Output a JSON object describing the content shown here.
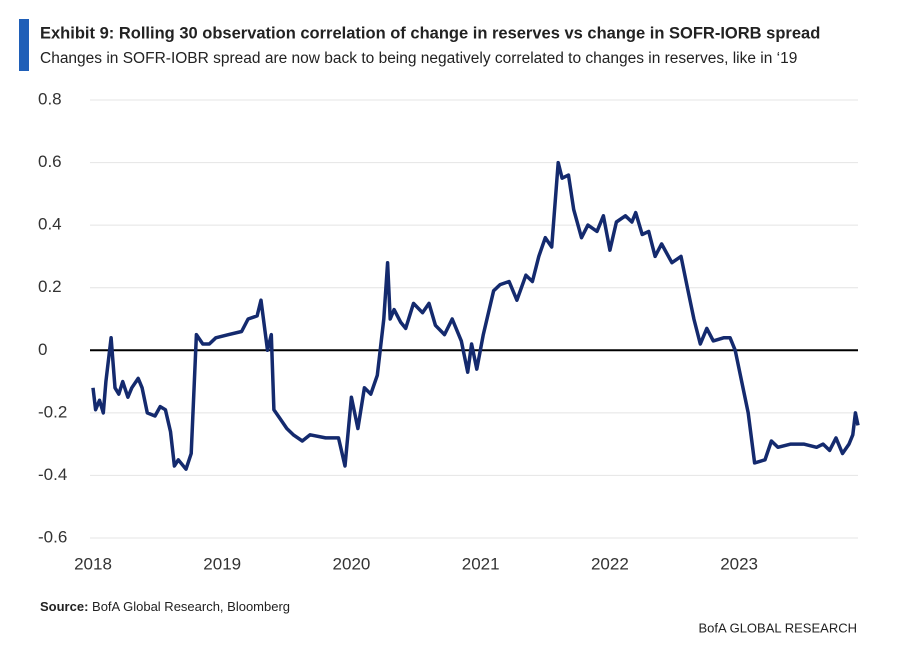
{
  "chart_data": {
    "type": "line",
    "title": "Exhibit 9: Rolling 30 observation correlation of change in reserves vs change in SOFR-IORB spread",
    "subtitle": "Changes in SOFR-IOBR spread are now back to being negatively correlated to changes in reserves, like in ‘19",
    "source_label": "Source:",
    "source": "BofA Global Research, Bloomberg",
    "brand": "BofA GLOBAL RESEARCH",
    "x": [
      2018.0,
      2018.02,
      2018.05,
      2018.08,
      2018.1,
      2018.14,
      2018.17,
      2018.2,
      2018.23,
      2018.27,
      2018.3,
      2018.35,
      2018.38,
      2018.42,
      2018.48,
      2018.52,
      2018.56,
      2018.6,
      2018.63,
      2018.66,
      2018.72,
      2018.76,
      2018.8,
      2018.85,
      2018.9,
      2018.95,
      2019.05,
      2019.15,
      2019.2,
      2019.27,
      2019.3,
      2019.35,
      2019.38,
      2019.4,
      2019.45,
      2019.5,
      2019.55,
      2019.62,
      2019.68,
      2019.8,
      2019.9,
      2019.95,
      2020.0,
      2020.05,
      2020.1,
      2020.15,
      2020.2,
      2020.25,
      2020.28,
      2020.3,
      2020.33,
      2020.38,
      2020.42,
      2020.48,
      2020.55,
      2020.6,
      2020.65,
      2020.72,
      2020.78,
      2020.85,
      2020.9,
      2020.93,
      2020.97,
      2021.02,
      2021.1,
      2021.15,
      2021.22,
      2021.28,
      2021.35,
      2021.4,
      2021.45,
      2021.5,
      2021.55,
      2021.6,
      2021.63,
      2021.68,
      2021.72,
      2021.78,
      2021.83,
      2021.9,
      2021.95,
      2022.0,
      2022.05,
      2022.12,
      2022.17,
      2022.2,
      2022.25,
      2022.3,
      2022.35,
      2022.4,
      2022.48,
      2022.55,
      2022.6,
      2022.65,
      2022.7,
      2022.75,
      2022.8,
      2022.88,
      2022.93,
      2022.97,
      2023.02,
      2023.07,
      2023.12,
      2023.2,
      2023.25,
      2023.3,
      2023.4,
      2023.5,
      2023.6,
      2023.65,
      2023.7,
      2023.75,
      2023.8,
      2023.85,
      2023.88,
      2023.9,
      2023.92
    ],
    "series": [
      {
        "name": "Rolling 30 observation correlation",
        "color": "#142a6e",
        "values": [
          -0.12,
          -0.19,
          -0.16,
          -0.2,
          -0.1,
          0.04,
          -0.12,
          -0.14,
          -0.1,
          -0.15,
          -0.12,
          -0.09,
          -0.12,
          -0.2,
          -0.21,
          -0.18,
          -0.19,
          -0.26,
          -0.37,
          -0.35,
          -0.38,
          -0.33,
          0.05,
          0.02,
          0.02,
          0.04,
          0.05,
          0.06,
          0.1,
          0.11,
          0.16,
          0.0,
          0.05,
          -0.19,
          -0.22,
          -0.25,
          -0.27,
          -0.29,
          -0.27,
          -0.28,
          -0.28,
          -0.37,
          -0.15,
          -0.25,
          -0.12,
          -0.14,
          -0.08,
          0.1,
          0.28,
          0.1,
          0.13,
          0.09,
          0.07,
          0.15,
          0.12,
          0.15,
          0.08,
          0.05,
          0.1,
          0.03,
          -0.07,
          0.02,
          -0.06,
          0.05,
          0.19,
          0.21,
          0.22,
          0.16,
          0.24,
          0.22,
          0.3,
          0.36,
          0.33,
          0.6,
          0.55,
          0.56,
          0.45,
          0.36,
          0.4,
          0.38,
          0.43,
          0.32,
          0.41,
          0.43,
          0.41,
          0.44,
          0.37,
          0.38,
          0.3,
          0.34,
          0.28,
          0.3,
          0.2,
          0.1,
          0.02,
          0.07,
          0.03,
          0.04,
          0.04,
          0.0,
          -0.1,
          -0.2,
          -0.36,
          -0.35,
          -0.29,
          -0.31,
          -0.3,
          -0.3,
          -0.31,
          -0.3,
          -0.32,
          -0.28,
          -0.33,
          -0.3,
          -0.27,
          -0.2,
          -0.24
        ]
      }
    ],
    "xlim": [
      2018,
      2023.92
    ],
    "xticks": [
      2018,
      2019,
      2020,
      2021,
      2022,
      2023
    ],
    "ylim": [
      -0.6,
      0.8
    ],
    "yticks": [
      0.8,
      0.6,
      0.4,
      0.2,
      0,
      -0.2,
      -0.4,
      -0.6
    ],
    "grid": true,
    "zero_line": true
  }
}
